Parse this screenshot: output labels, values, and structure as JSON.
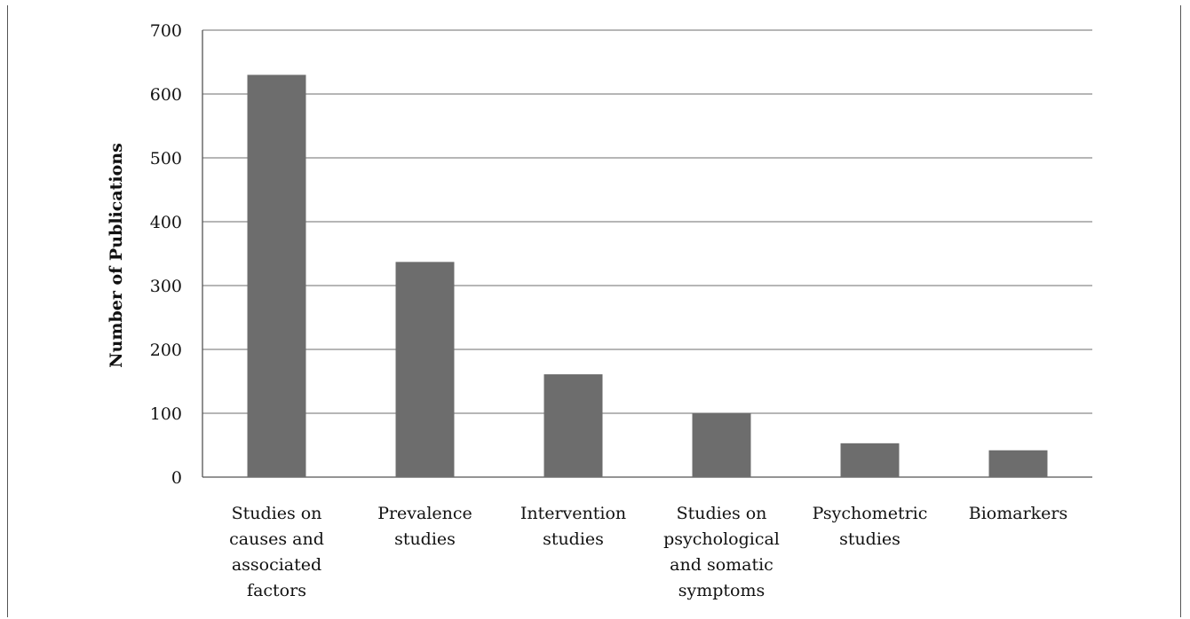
{
  "chart_data": {
    "type": "bar",
    "title": "",
    "xlabel": "",
    "ylabel": "Number of Publications",
    "ylim": [
      0,
      700
    ],
    "yticks": [
      0,
      100,
      200,
      300,
      400,
      500,
      600,
      700
    ],
    "grid": true,
    "categories": [
      [
        "Studies on",
        "causes and",
        "associated",
        "factors"
      ],
      [
        "Prevalence",
        "studies"
      ],
      [
        "Intervention",
        "studies"
      ],
      [
        "Studies on",
        "psychological",
        "and somatic",
        "symptoms"
      ],
      [
        "Psychometric",
        "studies"
      ],
      [
        "Biomarkers"
      ]
    ],
    "values": [
      630,
      337,
      161,
      100,
      53,
      42
    ],
    "colors": {
      "bar": "#6d6d6d",
      "grid": "#8a8a8a",
      "axis": "#555555"
    }
  }
}
